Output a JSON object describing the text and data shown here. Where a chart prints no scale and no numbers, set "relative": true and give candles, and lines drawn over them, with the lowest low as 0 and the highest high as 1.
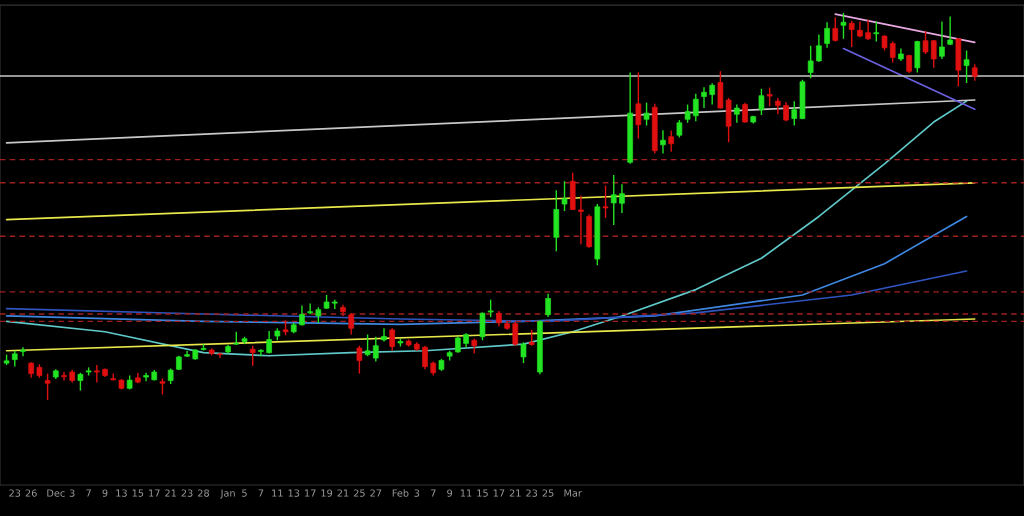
{
  "chart_data": {
    "type": "candlestick",
    "relative": true,
    "categories": [
      null,
      "23",
      null,
      "26",
      null,
      null,
      "Dec",
      null,
      "3",
      null,
      "7",
      null,
      "9",
      null,
      "13",
      null,
      "15",
      null,
      "17",
      null,
      "21",
      null,
      "23",
      null,
      "28",
      null,
      null,
      "Jan",
      null,
      "5",
      null,
      "7",
      null,
      "11",
      null,
      "13",
      null,
      "17",
      null,
      "19",
      null,
      "21",
      null,
      "25",
      null,
      "27",
      null,
      null,
      "Feb",
      null,
      "3",
      null,
      "7",
      null,
      "9",
      null,
      "11",
      null,
      "15",
      null,
      "17",
      null,
      "21",
      null,
      "23",
      null,
      "25",
      null,
      null,
      "Mar",
      null,
      null,
      null,
      null,
      null,
      null,
      null,
      null,
      null,
      null,
      null,
      null,
      null,
      null,
      null,
      null,
      null,
      null,
      null,
      null,
      null,
      null,
      null,
      null,
      null,
      null,
      null,
      null,
      null,
      null,
      null,
      null,
      null,
      null,
      null,
      null,
      null,
      null,
      null,
      null,
      null,
      null,
      null,
      null,
      null,
      null,
      null,
      null,
      null
    ],
    "colors": [
      "#22e422",
      "#22e422",
      "#22e422",
      "#e01010",
      "#e01010",
      "#e01010",
      "#22e422",
      "#e01010",
      "#e01010",
      "#22e422",
      "#22e422",
      "#e01010",
      "#e01010",
      "#e01010",
      "#e01010",
      "#22e422",
      "#e01010",
      "#22e422",
      "#22e422",
      "#e01010",
      "#22e422",
      "#22e422",
      "#22e422",
      "#22e422",
      "#22e422",
      "#e01010",
      "#e01010",
      "#22e422",
      "#22e422",
      "#22e422",
      "#e01010",
      "#22e422",
      "#22e422",
      "#22e422",
      "#e01010",
      "#22e422",
      "#22e422",
      "#22e422",
      "#22e422",
      "#22e422",
      "#22e422",
      "#e01010",
      "#e01010",
      "#e01010",
      "#22e422",
      "#22e422",
      "#22e422",
      "#e01010",
      "#22e422",
      "#e01010",
      "#e01010",
      "#e01010",
      "#e01010",
      "#22e422",
      "#22e422",
      "#22e422",
      "#22e422",
      "#e01010",
      "#22e422",
      "#22e422",
      "#e01010",
      "#e01010",
      "#e01010",
      "#22e422",
      "#e01010",
      "#22e422",
      "#22e422",
      "#22e422",
      "#22e422",
      "#e01010",
      "#e01010",
      "#e01010",
      "#22e422",
      "#e01010",
      "#22e422",
      "#22e422",
      "#22e422",
      "#e01010",
      "#22e422",
      "#e01010",
      "#22e422",
      "#e01010",
      "#22e422",
      "#22e422",
      "#22e422",
      "#22e422",
      "#22e422",
      "#e01010",
      "#e01010",
      "#22e422",
      "#e01010",
      "#22e422",
      "#22e422",
      "#e01010",
      "#e01010",
      "#e01010",
      "#22e422",
      "#22e422",
      "#22e422",
      "#22e422",
      "#22e422",
      "#e01010",
      "#22e422",
      "#e01010",
      "#e01010",
      "#e01010",
      "#22e422",
      "#e01010",
      "#e01010",
      "#22e422",
      "#e01010",
      "#22e422",
      "#e01010",
      "#e01010",
      "#22e422",
      "#22e422",
      "#e01010",
      "#22e422",
      "#e01010"
    ],
    "ohlc": [
      [
        0.095,
        0.117,
        0.09,
        0.101
      ],
      [
        0.104,
        0.127,
        0.086,
        0.119
      ],
      [
        0.125,
        0.136,
        0.113,
        0.129
      ],
      [
        0.095,
        0.097,
        0.057,
        0.068
      ],
      [
        0.084,
        0.092,
        0.057,
        0.063
      ],
      [
        0.05,
        0.068,
        0,
        0.043
      ],
      [
        0.059,
        0.079,
        0.054,
        0.075
      ],
      [
        0.063,
        0.072,
        0.05,
        0.06
      ],
      [
        0.072,
        0.077,
        0.045,
        0.05
      ],
      [
        0.05,
        0.07,
        0.024,
        0.066
      ],
      [
        0.072,
        0.084,
        0.063,
        0.075
      ],
      [
        0.075,
        0.09,
        0.045,
        0.072
      ],
      [
        0.079,
        0.081,
        0.059,
        0.063
      ],
      [
        0.055,
        0.068,
        0.05,
        0.052
      ],
      [
        0.051,
        0.054,
        0.027,
        0.03
      ],
      [
        0.03,
        0.063,
        0.027,
        0.051
      ],
      [
        0.057,
        0.07,
        0.043,
        0.046
      ],
      [
        0.059,
        0.07,
        0.048,
        0.063
      ],
      [
        0.052,
        0.077,
        0.05,
        0.072
      ],
      [
        0.047,
        0.056,
        0.014,
        0.043
      ],
      [
        0.05,
        0.081,
        0.041,
        0.077
      ],
      [
        0.079,
        0.114,
        0.077,
        0.111
      ],
      [
        0.113,
        0.127,
        0.111,
        0.117
      ],
      [
        0.106,
        0.131,
        0.104,
        0.129
      ],
      [
        0.13,
        0.144,
        0.128,
        0.133
      ],
      [
        0.129,
        0.133,
        0.115,
        0.12
      ],
      [
        0.119,
        0.122,
        0.108,
        0.117
      ],
      [
        0.124,
        0.142,
        0.12,
        0.138
      ],
      [
        0.144,
        0.176,
        0.142,
        0.146
      ],
      [
        0.151,
        0.163,
        0.144,
        0.158
      ],
      [
        0.131,
        0.14,
        0.088,
        0.122
      ],
      [
        0.125,
        0.131,
        0.113,
        0.128
      ],
      [
        0.122,
        0.178,
        0.12,
        0.156
      ],
      [
        0.165,
        0.185,
        0.154,
        0.178
      ],
      [
        0.181,
        0.205,
        0.167,
        0.176
      ],
      [
        0.176,
        0.199,
        0.172,
        0.194
      ],
      [
        0.194,
        0.244,
        0.192,
        0.221
      ],
      [
        0.225,
        0.249,
        0.221,
        0.228
      ],
      [
        0.217,
        0.239,
        0.199,
        0.233
      ],
      [
        0.237,
        0.271,
        0.235,
        0.253
      ],
      [
        0.25,
        0.259,
        0.235,
        0.253
      ],
      [
        0.239,
        0.246,
        0.217,
        0.228
      ],
      [
        0.22,
        0.224,
        0.169,
        0.185
      ],
      [
        0.134,
        0.14,
        0.068,
        0.102
      ],
      [
        0.117,
        0.169,
        0.113,
        0.127
      ],
      [
        0.108,
        0.163,
        0.099,
        0.14
      ],
      [
        0.155,
        0.185,
        0.151,
        0.164
      ],
      [
        0.181,
        0.185,
        0.127,
        0.138
      ],
      [
        0.147,
        0.158,
        0.138,
        0.151
      ],
      [
        0.152,
        0.156,
        0.138,
        0.142
      ],
      [
        0.144,
        0.149,
        0.127,
        0.131
      ],
      [
        0.136,
        0.14,
        0.079,
        0.086
      ],
      [
        0.095,
        0.099,
        0.063,
        0.07
      ],
      [
        0.079,
        0.106,
        0.075,
        0.102
      ],
      [
        0.113,
        0.127,
        0.102,
        0.122
      ],
      [
        0.124,
        0.163,
        0.122,
        0.16
      ],
      [
        0.146,
        0.172,
        0.136,
        0.169
      ],
      [
        0.154,
        0.158,
        0.12,
        0.14
      ],
      [
        0.163,
        0.226,
        0.154,
        0.224
      ],
      [
        0.227,
        0.259,
        0.214,
        0.23
      ],
      [
        0.224,
        0.23,
        0.19,
        0.199
      ],
      [
        0.197,
        0.201,
        0.181,
        0.185
      ],
      [
        0.197,
        0.201,
        0.14,
        0.144
      ],
      [
        0.111,
        0.149,
        0.095,
        0.144
      ],
      [
        0.149,
        0.181,
        0.14,
        0.143
      ],
      [
        0.072,
        0.205,
        0.066,
        0.203
      ],
      [
        0.22,
        0.274,
        0.214,
        0.262
      ],
      [
        0.42,
        0.542,
        0.384,
        0.492
      ],
      [
        0.506,
        0.565,
        0.488,
        0.52
      ],
      [
        0.565,
        0.587,
        0.491,
        0.492
      ],
      [
        0.491,
        0.528,
        0.402,
        0.487
      ],
      [
        0.474,
        0.479,
        0.393,
        0.396
      ],
      [
        0.364,
        0.506,
        0.348,
        0.499
      ],
      [
        0.499,
        0.554,
        0.47,
        0.496
      ],
      [
        0.509,
        0.581,
        0.452,
        0.53
      ],
      [
        0.508,
        0.557,
        0.483,
        0.533
      ],
      [
        0.614,
        0.846,
        0.61,
        0.741
      ],
      [
        0.765,
        0.846,
        0.675,
        0.711
      ],
      [
        0.725,
        0.768,
        0.709,
        0.741
      ],
      [
        0.756,
        0.765,
        0.637,
        0.644
      ],
      [
        0.659,
        0.697,
        0.637,
        0.671
      ],
      [
        0.68,
        0.696,
        0.641,
        0.662
      ],
      [
        0.684,
        0.723,
        0.678,
        0.716
      ],
      [
        0.725,
        0.763,
        0.716,
        0.745
      ],
      [
        0.734,
        0.791,
        0.72,
        0.777
      ],
      [
        0.784,
        0.808,
        0.754,
        0.795
      ],
      [
        0.789,
        0.818,
        0.763,
        0.813
      ],
      [
        0.82,
        0.849,
        0.753,
        0.754
      ],
      [
        0.775,
        0.78,
        0.666,
        0.707
      ],
      [
        0.738,
        0.763,
        0.716,
        0.754
      ],
      [
        0.763,
        0.768,
        0.716,
        0.718
      ],
      [
        0.718,
        0.734,
        0.714,
        0.732
      ],
      [
        0.75,
        0.804,
        0.736,
        0.786
      ],
      [
        0.789,
        0.807,
        0.759,
        0.785
      ],
      [
        0.772,
        0.78,
        0.738,
        0.761
      ],
      [
        0.761,
        0.77,
        0.72,
        0.723
      ],
      [
        0.727,
        0.772,
        0.709,
        0.75
      ],
      [
        0.727,
        0.827,
        0.725,
        0.822
      ],
      [
        0.846,
        0.915,
        0.831,
        0.876
      ],
      [
        0.876,
        0.944,
        0.873,
        0.915
      ],
      [
        0.921,
        0.976,
        0.91,
        0.96
      ],
      [
        0.96,
        0.989,
        0.926,
        0.929
      ],
      [
        0.968,
        1,
        0.933,
        0.976
      ],
      [
        0.973,
        0.98,
        0.912,
        0.957
      ],
      [
        0.955,
        0.978,
        0.937,
        0.94
      ],
      [
        0.949,
        0.982,
        0.93,
        0.933
      ],
      [
        0.946,
        0.978,
        0.926,
        0.949
      ],
      [
        0.94,
        0.942,
        0.903,
        0.91
      ],
      [
        0.921,
        0.926,
        0.872,
        0.885
      ],
      [
        0.881,
        0.908,
        0.876,
        0.894
      ],
      [
        0.89,
        0.892,
        0.845,
        0.849
      ],
      [
        0.858,
        0.928,
        0.846,
        0.926
      ],
      [
        0.928,
        0.953,
        0.894,
        0.899
      ],
      [
        0.928,
        0.93,
        0.858,
        0.881
      ],
      [
        0.888,
        0.978,
        0.881,
        0.912
      ],
      [
        0.919,
        0.991,
        0.917,
        0.93
      ],
      [
        0.933,
        0.935,
        0.81,
        0.852
      ],
      [
        0.864,
        0.903,
        0.819,
        0.879
      ],
      [
        0.858,
        0.867,
        0.825,
        0.836
      ]
    ],
    "series": [
      {
        "type": "line",
        "color": "#5fc8c8",
        "values": [
          0.203,
          null,
          null,
          null,
          null,
          null,
          null,
          null,
          null,
          null,
          null,
          null,
          0.176,
          null,
          null,
          null,
          null,
          null,
          null,
          null,
          null,
          null,
          null,
          null,
          0.122,
          null,
          null,
          null,
          null,
          null,
          null,
          null,
          0.114,
          null,
          null,
          null,
          null,
          null,
          null,
          null,
          null,
          null,
          0.122,
          null,
          null,
          null,
          null,
          null,
          null,
          null,
          null,
          0.127,
          null,
          null,
          null,
          null,
          null,
          null,
          null,
          null,
          null,
          null,
          null,
          0.144,
          null,
          null,
          null,
          null,
          null,
          0.176,
          null,
          null,
          null,
          null,
          null,
          0.217,
          null,
          null,
          null,
          null,
          null,
          null,
          null,
          null,
          0.285,
          null,
          null,
          null,
          null,
          null,
          null,
          null,
          0.366,
          null,
          null,
          null,
          null,
          null,
          null,
          0.474,
          null,
          null,
          null,
          null,
          null,
          null,
          null,
          0.61,
          null,
          null,
          null,
          null,
          null,
          0.718,
          null,
          null,
          null,
          0.772,
          null
        ]
      },
      {
        "type": "line",
        "color": "#3f86e0",
        "values": [
          0.217,
          null,
          null,
          null,
          null,
          null,
          null,
          null,
          null,
          null,
          null,
          null,
          null,
          null,
          null,
          null,
          null,
          null,
          null,
          null,
          null,
          null,
          null,
          null,
          0.203,
          null,
          null,
          null,
          null,
          null,
          null,
          null,
          null,
          null,
          null,
          null,
          null,
          null,
          null,
          null,
          null,
          null,
          null,
          null,
          null,
          null,
          null,
          null,
          0.195,
          null,
          null,
          null,
          null,
          null,
          null,
          null,
          null,
          null,
          null,
          null,
          null,
          null,
          null,
          0.203,
          null,
          null,
          null,
          null,
          null,
          null,
          null,
          null,
          null,
          null,
          null,
          null,
          null,
          null,
          null,
          0.217,
          null,
          null,
          null,
          null,
          null,
          null,
          null,
          null,
          null,
          null,
          null,
          null,
          null,
          null,
          null,
          null,
          null,
          0.271,
          null,
          null,
          null,
          null,
          null,
          null,
          null,
          null,
          null,
          0.352,
          null,
          null,
          null,
          null,
          null,
          null,
          null,
          null,
          null,
          0.474,
          null
        ]
      },
      {
        "type": "line",
        "color": "#2f55c0",
        "values": [
          0.236,
          null,
          null,
          null,
          null,
          null,
          null,
          null,
          null,
          null,
          null,
          null,
          null,
          null,
          null,
          null,
          null,
          null,
          null,
          null,
          null,
          null,
          null,
          null,
          0.222,
          null,
          null,
          null,
          null,
          null,
          null,
          null,
          null,
          null,
          null,
          null,
          null,
          null,
          null,
          null,
          null,
          null,
          null,
          null,
          null,
          null,
          null,
          null,
          0.209,
          null,
          null,
          null,
          null,
          null,
          null,
          null,
          null,
          null,
          null,
          null,
          null,
          null,
          null,
          null,
          null,
          null,
          0.203,
          null,
          null,
          null,
          null,
          null,
          null,
          null,
          null,
          null,
          null,
          null,
          null,
          null,
          null,
          null,
          null,
          null,
          0.225,
          null,
          null,
          null,
          null,
          null,
          null,
          null,
          null,
          null,
          null,
          null,
          null,
          null,
          null,
          null,
          null,
          null,
          null,
          0.271,
          null,
          null,
          null,
          null,
          null,
          null,
          null,
          null,
          null,
          null,
          null,
          null,
          null,
          0.333,
          null
        ]
      },
      {
        "type": "line",
        "color": "#e8e84a",
        "values": [
          0.466,
          null,
          null,
          null,
          null,
          null,
          null,
          null,
          null,
          null,
          null,
          null,
          null,
          null,
          null,
          null,
          null,
          null,
          null,
          null,
          null,
          null,
          null,
          null,
          null,
          null,
          null,
          null,
          null,
          null,
          null,
          null,
          null,
          null,
          null,
          null,
          null,
          null,
          null,
          null,
          null,
          null,
          null,
          null,
          null,
          null,
          null,
          null,
          null,
          null,
          null,
          null,
          null,
          null,
          null,
          null,
          null,
          null,
          null,
          null,
          null,
          null,
          null,
          null,
          null,
          null,
          null,
          null,
          null,
          null,
          null,
          null,
          null,
          null,
          null,
          null,
          null,
          null,
          null,
          null,
          null,
          null,
          null,
          null,
          null,
          null,
          null,
          null,
          null,
          null,
          null,
          null,
          null,
          null,
          null,
          null,
          null,
          null,
          null,
          null,
          null,
          null,
          null,
          null,
          null,
          null,
          null,
          null,
          null,
          null,
          null,
          null,
          null,
          null,
          null,
          null,
          null,
          null,
          0.561
        ]
      },
      {
        "type": "line",
        "color": "#e8e84a",
        "values": [
          0.127,
          null,
          null,
          null,
          null,
          null,
          null,
          null,
          null,
          null,
          null,
          null,
          null,
          null,
          null,
          null,
          null,
          null,
          null,
          null,
          null,
          null,
          null,
          null,
          null,
          null,
          null,
          null,
          null,
          null,
          null,
          null,
          null,
          null,
          null,
          null,
          null,
          null,
          null,
          null,
          null,
          null,
          null,
          null,
          null,
          null,
          null,
          null,
          null,
          null,
          null,
          null,
          null,
          null,
          null,
          null,
          null,
          null,
          null,
          null,
          null,
          null,
          null,
          null,
          null,
          null,
          null,
          null,
          null,
          null,
          null,
          null,
          null,
          null,
          null,
          null,
          null,
          null,
          null,
          null,
          null,
          null,
          null,
          null,
          null,
          null,
          null,
          null,
          null,
          null,
          null,
          null,
          null,
          null,
          null,
          null,
          null,
          null,
          null,
          null,
          null,
          null,
          null,
          null,
          null,
          null,
          null,
          null,
          null,
          null,
          null,
          null,
          null,
          null,
          null,
          null,
          null,
          null,
          0.209
        ]
      },
      {
        "type": "line",
        "color": "#c8c8c8",
        "values": [
          0.664,
          null,
          null,
          null,
          null,
          null,
          null,
          null,
          null,
          null,
          null,
          null,
          null,
          null,
          null,
          null,
          null,
          null,
          null,
          null,
          null,
          null,
          null,
          null,
          null,
          null,
          null,
          null,
          null,
          null,
          null,
          null,
          null,
          null,
          null,
          null,
          null,
          null,
          null,
          null,
          null,
          null,
          null,
          null,
          null,
          null,
          null,
          null,
          null,
          null,
          null,
          null,
          null,
          null,
          null,
          null,
          null,
          null,
          null,
          null,
          null,
          null,
          null,
          null,
          null,
          null,
          null,
          null,
          null,
          null,
          null,
          null,
          null,
          null,
          null,
          null,
          null,
          null,
          null,
          null,
          null,
          null,
          null,
          null,
          null,
          null,
          null,
          null,
          null,
          null,
          null,
          null,
          null,
          null,
          null,
          null,
          null,
          null,
          null,
          null,
          null,
          null,
          null,
          null,
          null,
          null,
          null,
          null,
          null,
          null,
          null,
          null,
          null,
          null,
          null,
          null,
          null,
          null,
          0.775
        ]
      },
      {
        "type": "line",
        "color": "#e6a8e0",
        "values": [
          null,
          null,
          null,
          null,
          null,
          null,
          null,
          null,
          null,
          null,
          null,
          null,
          null,
          null,
          null,
          null,
          null,
          null,
          null,
          null,
          null,
          null,
          null,
          null,
          null,
          null,
          null,
          null,
          null,
          null,
          null,
          null,
          null,
          null,
          null,
          null,
          null,
          null,
          null,
          null,
          null,
          null,
          null,
          null,
          null,
          null,
          null,
          null,
          null,
          null,
          null,
          null,
          null,
          null,
          null,
          null,
          null,
          null,
          null,
          null,
          null,
          null,
          null,
          null,
          null,
          null,
          null,
          null,
          null,
          null,
          null,
          null,
          null,
          null,
          null,
          null,
          null,
          null,
          null,
          null,
          null,
          null,
          null,
          null,
          null,
          null,
          null,
          null,
          null,
          null,
          null,
          null,
          null,
          null,
          null,
          null,
          null,
          null,
          null,
          null,
          null,
          0.997,
          null,
          null,
          null,
          null,
          null,
          null,
          null,
          null,
          null,
          null,
          null,
          null,
          null,
          null,
          null,
          null,
          0.924
        ]
      },
      {
        "type": "line",
        "color": "#6a60e0",
        "values": [
          null,
          null,
          null,
          null,
          null,
          null,
          null,
          null,
          null,
          null,
          null,
          null,
          null,
          null,
          null,
          null,
          null,
          null,
          null,
          null,
          null,
          null,
          null,
          null,
          null,
          null,
          null,
          null,
          null,
          null,
          null,
          null,
          null,
          null,
          null,
          null,
          null,
          null,
          null,
          null,
          null,
          null,
          null,
          null,
          null,
          null,
          null,
          null,
          null,
          null,
          null,
          null,
          null,
          null,
          null,
          null,
          null,
          null,
          null,
          null,
          null,
          null,
          null,
          null,
          null,
          null,
          null,
          null,
          null,
          null,
          null,
          null,
          null,
          null,
          null,
          null,
          null,
          null,
          null,
          null,
          null,
          null,
          null,
          null,
          null,
          null,
          null,
          null,
          null,
          null,
          null,
          null,
          null,
          null,
          null,
          null,
          null,
          null,
          null,
          null,
          null,
          null,
          0.908,
          null,
          null,
          null,
          null,
          null,
          null,
          null,
          null,
          null,
          null,
          null,
          null,
          null,
          null,
          null,
          0.751
        ]
      }
    ],
    "ref_lines": [
      {
        "axis": "y",
        "value": 0.837,
        "color": "#c8c8c8",
        "line_style": "solid"
      },
      {
        "axis": "y",
        "value": 0.621,
        "color": "#a02020",
        "line_style": "dashed"
      },
      {
        "axis": "y",
        "value": 0.561,
        "color": "#a02020",
        "line_style": "dashed"
      },
      {
        "axis": "y",
        "value": 0.423,
        "color": "#a02020",
        "line_style": "dashed"
      },
      {
        "axis": "y",
        "value": 0.279,
        "color": "#a02020",
        "line_style": "dashed"
      },
      {
        "axis": "y",
        "value": 0.222,
        "color": "#a02020",
        "line_style": "dashed"
      },
      {
        "axis": "y",
        "value": 0.203,
        "color": "#a02020",
        "line_style": "dashed"
      }
    ]
  }
}
